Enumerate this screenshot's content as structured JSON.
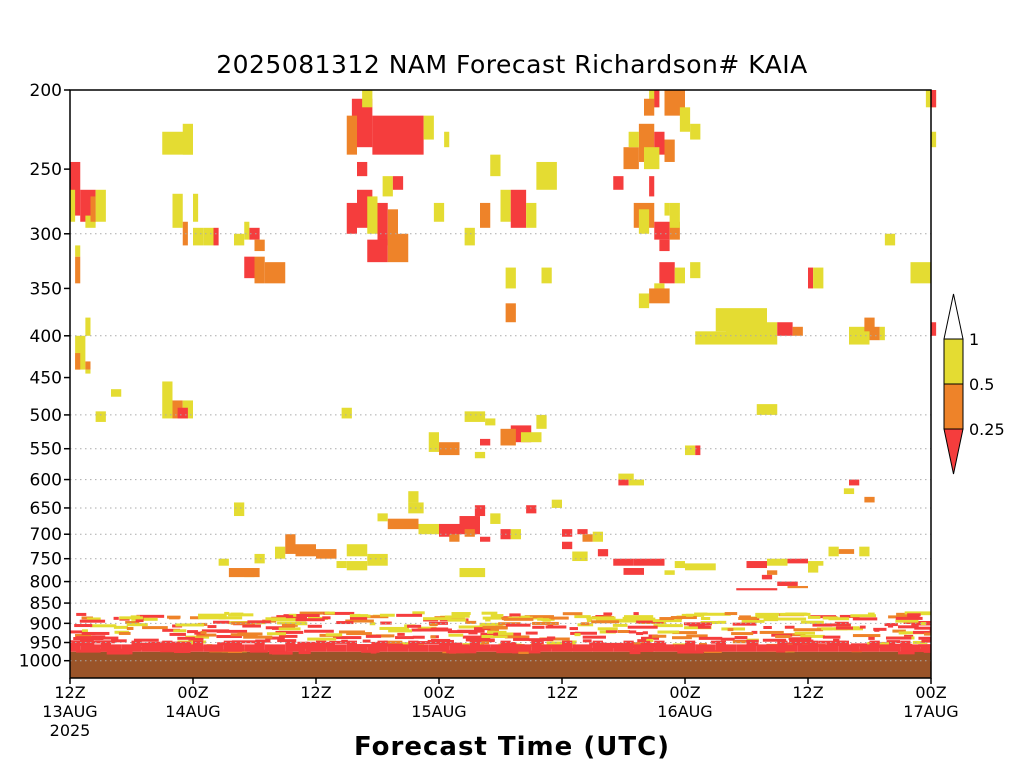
{
  "chart_data": {
    "type": "heatmap",
    "title": "2025081312 NAM Forecast Richardson# KAIA",
    "xlabel": "Forecast Time (UTC)",
    "ylabel": "",
    "y_scale": "log-pressure (inverted)",
    "ylim": [
      1000,
      200
    ],
    "y_ticks": [
      200,
      250,
      300,
      350,
      400,
      450,
      500,
      550,
      600,
      650,
      700,
      750,
      800,
      850,
      900,
      950,
      1000
    ],
    "x_start": "2025-08-13 12Z",
    "x_end": "2025-08-17 00Z",
    "x_ticks": [
      {
        "hour": 0,
        "line1": "12Z",
        "line2": "13AUG",
        "line3": "2025"
      },
      {
        "hour": 12,
        "line1": "00Z",
        "line2": "14AUG",
        "line3": ""
      },
      {
        "hour": 24,
        "line1": "12Z",
        "line2": "",
        "line3": ""
      },
      {
        "hour": 36,
        "line1": "00Z",
        "line2": "15AUG",
        "line3": ""
      },
      {
        "hour": 48,
        "line1": "12Z",
        "line2": "",
        "line3": ""
      },
      {
        "hour": 60,
        "line1": "00Z",
        "line2": "16AUG",
        "line3": ""
      },
      {
        "hour": 72,
        "line1": "12Z",
        "line2": "",
        "line3": ""
      },
      {
        "hour": 84,
        "line1": "00Z",
        "line2": "17AUG",
        "line3": ""
      }
    ],
    "dotted_gridlines_at": [
      300,
      400,
      500,
      550,
      600,
      650,
      700,
      750,
      800,
      850,
      900,
      950,
      1000
    ],
    "legend": {
      "placement": "right",
      "labels": [
        "1",
        "0.5",
        "0.25"
      ],
      "bins": [
        {
          "range": "0.5 - 1",
          "color": "#e4dc32"
        },
        {
          "range": "0.25 - 0.5",
          "color": "#ee8329"
        },
        {
          "range": "< 0.25",
          "color": "#f53d3d"
        }
      ]
    },
    "colors": {
      "lt1": "#e4dc32",
      "lt05": "#ee8329",
      "lt025": "#f53d3d",
      "ground": "#9a5429"
    },
    "ground_below_hpa": 980,
    "region_cells_note": "Each region: [hour_start, hour_end, pressure_top_hPa, pressure_bottom_hPa, bin] with bin 1 = 0.5-1, 2 = 0.25-0.5, 3 = <0.25",
    "regions": [
      [
        0.0,
        1.0,
        245,
        285,
        3
      ],
      [
        0.0,
        0.5,
        265,
        290,
        1
      ],
      [
        1.0,
        2.5,
        265,
        290,
        3
      ],
      [
        2.5,
        3.5,
        265,
        290,
        1
      ],
      [
        1.5,
        2.5,
        285,
        295,
        1
      ],
      [
        0.5,
        1.0,
        320,
        345,
        2
      ],
      [
        0.5,
        1.0,
        310,
        320,
        1
      ],
      [
        2.0,
        2.5,
        270,
        290,
        2
      ],
      [
        1.5,
        2.0,
        380,
        400,
        1
      ],
      [
        0.5,
        1.5,
        400,
        440,
        1
      ],
      [
        0.5,
        1.0,
        420,
        440,
        2
      ],
      [
        1.5,
        2.0,
        430,
        440,
        2
      ],
      [
        4.0,
        5.0,
        465,
        475,
        1
      ],
      [
        2.5,
        3.5,
        495,
        510,
        1
      ],
      [
        1.5,
        2.0,
        440,
        445,
        1
      ],
      [
        9.0,
        12.0,
        225,
        240,
        1
      ],
      [
        11.0,
        12.0,
        220,
        240,
        1
      ],
      [
        10.0,
        11.0,
        268,
        295,
        1
      ],
      [
        12.0,
        12.5,
        268,
        290,
        1
      ],
      [
        11.0,
        11.5,
        290,
        310,
        2
      ],
      [
        12.0,
        13.0,
        295,
        310,
        1
      ],
      [
        13.0,
        14.0,
        295,
        310,
        1
      ],
      [
        14.0,
        14.5,
        295,
        310,
        3
      ],
      [
        16.0,
        17.0,
        300,
        310,
        1
      ],
      [
        17.0,
        17.5,
        290,
        305,
        1
      ],
      [
        17.5,
        18.5,
        295,
        305,
        3
      ],
      [
        18.0,
        19.0,
        305,
        315,
        2
      ],
      [
        18.0,
        19.0,
        320,
        345,
        2
      ],
      [
        19.0,
        21.0,
        325,
        345,
        2
      ],
      [
        17.0,
        18.0,
        320,
        340,
        3
      ],
      [
        9.0,
        10.0,
        455,
        505,
        1
      ],
      [
        10.0,
        11.0,
        480,
        505,
        2
      ],
      [
        11.0,
        12.0,
        480,
        505,
        1
      ],
      [
        10.5,
        11.5,
        490,
        505,
        3
      ],
      [
        26.5,
        27.5,
        490,
        505,
        1
      ],
      [
        17.0,
        18.0,
        770,
        790,
        1
      ],
      [
        14.5,
        15.5,
        750,
        765,
        1
      ],
      [
        15.5,
        18.5,
        770,
        790,
        2
      ],
      [
        16.0,
        17.0,
        640,
        665,
        1
      ],
      [
        18.0,
        19.0,
        740,
        760,
        1
      ],
      [
        20.0,
        21.0,
        725,
        750,
        1
      ],
      [
        21.0,
        22.0,
        700,
        740,
        2
      ],
      [
        22.0,
        24.0,
        720,
        745,
        2
      ],
      [
        24.0,
        26.0,
        730,
        750,
        2
      ],
      [
        26.0,
        27.0,
        755,
        770,
        1
      ],
      [
        27.0,
        29.0,
        755,
        775,
        1
      ],
      [
        27.5,
        29.5,
        205,
        235,
        3
      ],
      [
        27.0,
        28.0,
        215,
        240,
        2
      ],
      [
        29.5,
        34.5,
        215,
        240,
        3
      ],
      [
        34.5,
        35.5,
        215,
        230,
        1
      ],
      [
        28.0,
        29.0,
        245,
        255,
        3
      ],
      [
        28.0,
        29.5,
        265,
        295,
        3
      ],
      [
        27.0,
        28.0,
        275,
        300,
        3
      ],
      [
        29.0,
        30.0,
        270,
        300,
        1
      ],
      [
        30.0,
        31.0,
        275,
        310,
        3
      ],
      [
        31.0,
        32.0,
        280,
        305,
        2
      ],
      [
        29.0,
        31.0,
        305,
        325,
        3
      ],
      [
        31.0,
        33.0,
        300,
        325,
        2
      ],
      [
        28.5,
        29.5,
        200,
        210,
        1
      ],
      [
        30.5,
        31.5,
        255,
        270,
        1
      ],
      [
        31.5,
        32.5,
        255,
        265,
        3
      ],
      [
        35.5,
        36.5,
        275,
        290,
        1
      ],
      [
        38.5,
        39.5,
        295,
        310,
        1
      ],
      [
        36.5,
        37.0,
        225,
        235,
        1
      ],
      [
        35.0,
        36.0,
        525,
        555,
        1
      ],
      [
        36.0,
        38.0,
        540,
        560,
        2
      ],
      [
        38.5,
        40.5,
        495,
        510,
        1
      ],
      [
        40.5,
        41.5,
        505,
        515,
        1
      ],
      [
        33.0,
        34.5,
        640,
        660,
        1
      ],
      [
        31.0,
        34.0,
        670,
        690,
        2
      ],
      [
        30.0,
        31.0,
        660,
        675,
        1
      ],
      [
        34.0,
        36.0,
        680,
        700,
        1
      ],
      [
        36.0,
        38.0,
        680,
        705,
        3
      ],
      [
        38.0,
        40.0,
        665,
        700,
        3
      ],
      [
        37.0,
        38.0,
        700,
        715,
        2
      ],
      [
        40.0,
        41.0,
        705,
        715,
        3
      ],
      [
        42.0,
        43.0,
        690,
        710,
        3
      ],
      [
        43.0,
        44.0,
        690,
        710,
        1
      ],
      [
        39.5,
        40.5,
        645,
        665,
        3
      ],
      [
        41.0,
        42.0,
        660,
        680,
        1
      ],
      [
        29.0,
        31.0,
        740,
        765,
        1
      ],
      [
        27.0,
        29.0,
        720,
        745,
        1
      ],
      [
        33.0,
        34.0,
        620,
        640,
        1
      ],
      [
        38.5,
        39.5,
        690,
        705,
        2
      ],
      [
        39.5,
        40.5,
        555,
        565,
        1
      ],
      [
        40.0,
        41.0,
        535,
        545,
        3
      ],
      [
        43.0,
        45.0,
        515,
        540,
        3
      ],
      [
        44.0,
        46.0,
        525,
        540,
        1
      ],
      [
        42.0,
        43.5,
        520,
        545,
        2
      ],
      [
        45.5,
        46.5,
        500,
        520,
        1
      ],
      [
        42.0,
        43.0,
        265,
        290,
        1
      ],
      [
        43.0,
        44.5,
        265,
        295,
        3
      ],
      [
        44.5,
        45.5,
        275,
        295,
        1
      ],
      [
        40.0,
        41.0,
        275,
        295,
        2
      ],
      [
        41.0,
        42.0,
        240,
        255,
        1
      ],
      [
        45.5,
        47.5,
        245,
        265,
        1
      ],
      [
        42.5,
        43.5,
        365,
        385,
        2
      ],
      [
        42.5,
        43.5,
        330,
        350,
        1
      ],
      [
        46.0,
        47.0,
        330,
        345,
        1
      ],
      [
        44.5,
        45.5,
        645,
        660,
        3
      ],
      [
        47.0,
        48.0,
        635,
        650,
        1
      ],
      [
        48.0,
        49.0,
        690,
        705,
        3
      ],
      [
        50.0,
        51.0,
        700,
        715,
        2
      ],
      [
        49.5,
        50.5,
        690,
        700,
        3
      ],
      [
        51.0,
        52.0,
        695,
        715,
        1
      ],
      [
        48.0,
        49.0,
        715,
        730,
        3
      ],
      [
        51.5,
        52.5,
        730,
        745,
        3
      ],
      [
        49.0,
        50.5,
        735,
        755,
        1
      ],
      [
        53.0,
        55.0,
        750,
        765,
        3
      ],
      [
        55.0,
        58.0,
        750,
        765,
        3
      ],
      [
        54.0,
        56.0,
        770,
        785,
        3
      ],
      [
        59.0,
        60.0,
        755,
        770,
        1
      ],
      [
        60.0,
        63.0,
        760,
        775,
        1
      ],
      [
        58.0,
        59.0,
        775,
        785,
        1
      ],
      [
        53.5,
        54.5,
        600,
        610,
        3
      ],
      [
        53.5,
        55.0,
        590,
        600,
        1
      ],
      [
        54.5,
        56.0,
        600,
        610,
        1
      ],
      [
        55.5,
        57.0,
        220,
        245,
        2
      ],
      [
        57.0,
        58.0,
        225,
        240,
        3
      ],
      [
        58.0,
        59.0,
        230,
        245,
        2
      ],
      [
        56.0,
        57.5,
        235,
        250,
        1
      ],
      [
        54.0,
        55.5,
        235,
        250,
        2
      ],
      [
        54.5,
        55.5,
        225,
        235,
        1
      ],
      [
        56.5,
        57.0,
        255,
        270,
        3
      ],
      [
        53.0,
        54.0,
        255,
        265,
        3
      ],
      [
        55.0,
        57.0,
        275,
        295,
        2
      ],
      [
        57.0,
        58.5,
        290,
        305,
        3
      ],
      [
        58.5,
        59.5,
        290,
        305,
        2
      ],
      [
        57.5,
        58.5,
        305,
        315,
        3
      ],
      [
        55.5,
        56.5,
        280,
        300,
        1
      ],
      [
        58.0,
        58.5,
        275,
        285,
        1
      ],
      [
        58.5,
        59.5,
        275,
        295,
        1
      ],
      [
        56.5,
        57.5,
        200,
        210,
        1
      ],
      [
        56.0,
        57.0,
        205,
        215,
        2
      ],
      [
        57.0,
        57.5,
        200,
        210,
        3
      ],
      [
        58.0,
        60.0,
        200,
        215,
        2
      ],
      [
        59.5,
        60.5,
        210,
        225,
        1
      ],
      [
        60.5,
        61.5,
        220,
        230,
        1
      ],
      [
        57.5,
        59.0,
        325,
        345,
        3
      ],
      [
        59.0,
        60.0,
        330,
        345,
        1
      ],
      [
        60.5,
        61.5,
        325,
        340,
        1
      ],
      [
        57.0,
        58.0,
        345,
        355,
        1
      ],
      [
        55.5,
        56.5,
        355,
        370,
        1
      ],
      [
        56.5,
        58.5,
        350,
        365,
        2
      ],
      [
        63.0,
        68.0,
        370,
        395,
        1
      ],
      [
        61.0,
        64.0,
        395,
        410,
        1
      ],
      [
        64.0,
        69.0,
        385,
        410,
        1
      ],
      [
        69.0,
        70.5,
        385,
        400,
        3
      ],
      [
        70.5,
        71.5,
        390,
        400,
        2
      ],
      [
        72.0,
        72.5,
        330,
        350,
        3
      ],
      [
        72.5,
        73.5,
        330,
        350,
        1
      ],
      [
        67.0,
        69.0,
        485,
        500,
        1
      ],
      [
        76.0,
        78.0,
        390,
        410,
        1
      ],
      [
        78.0,
        79.0,
        390,
        405,
        2
      ],
      [
        79.0,
        79.5,
        390,
        405,
        1
      ],
      [
        77.5,
        78.5,
        380,
        395,
        2
      ],
      [
        79.5,
        80.5,
        300,
        310,
        1
      ],
      [
        82.0,
        84.0,
        325,
        345,
        1
      ],
      [
        83.5,
        84.5,
        200,
        210,
        1
      ],
      [
        84.0,
        84.5,
        200,
        210,
        3
      ],
      [
        84.0,
        84.5,
        385,
        400,
        3
      ],
      [
        84.0,
        84.5,
        225,
        235,
        1
      ],
      [
        66.0,
        68.0,
        755,
        770,
        3
      ],
      [
        68.0,
        70.0,
        750,
        765,
        1
      ],
      [
        70.0,
        72.0,
        750,
        760,
        3
      ],
      [
        72.0,
        73.5,
        755,
        765,
        1
      ],
      [
        74.0,
        75.0,
        725,
        745,
        1
      ],
      [
        75.0,
        76.5,
        730,
        740,
        2
      ],
      [
        77.0,
        78.0,
        725,
        745,
        1
      ],
      [
        76.0,
        77.0,
        600,
        610,
        3
      ],
      [
        75.5,
        76.5,
        615,
        625,
        1
      ],
      [
        77.5,
        78.5,
        630,
        640,
        2
      ],
      [
        72.0,
        73.0,
        760,
        780,
        1
      ],
      [
        68.0,
        69.0,
        775,
        785,
        2
      ],
      [
        67.5,
        68.5,
        785,
        795,
        3
      ],
      [
        65.0,
        69.0,
        815,
        820,
        3
      ],
      [
        69.0,
        71.0,
        800,
        810,
        3
      ],
      [
        70.0,
        72.0,
        810,
        815,
        2
      ],
      [
        60.0,
        61.0,
        545,
        560,
        1
      ],
      [
        61.0,
        61.5,
        545,
        560,
        3
      ],
      [
        38.0,
        40.5,
        770,
        790,
        1
      ]
    ],
    "boundary_layer_note": "Near-surface turbulent layer between ~860 and ~975 hPa; mostly <0.25 near the ground",
    "ground_layer": [
      0,
      84,
      975,
      1050
    ]
  }
}
